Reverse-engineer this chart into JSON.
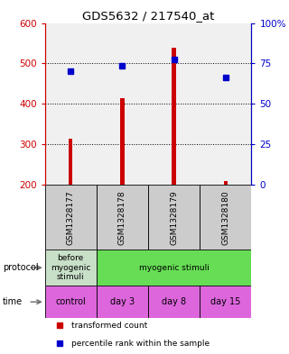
{
  "title": "GDS5632 / 217540_at",
  "samples": [
    "GSM1328177",
    "GSM1328178",
    "GSM1328179",
    "GSM1328180"
  ],
  "bar_bottoms": [
    200,
    200,
    200,
    200
  ],
  "bar_tops": [
    315,
    415,
    540,
    210
  ],
  "blue_values": [
    480,
    495,
    510,
    465
  ],
  "ylim_left": [
    200,
    600
  ],
  "ylim_right": [
    0,
    100
  ],
  "yticks_left": [
    200,
    300,
    400,
    500,
    600
  ],
  "yticks_right": [
    0,
    25,
    50,
    75,
    100
  ],
  "ytick_labels_right": [
    "0",
    "25",
    "50",
    "75",
    "100%"
  ],
  "bar_color": "#cc0000",
  "blue_color": "#0000cc",
  "protocol_labels": [
    "before\nmyogenic\nstimuli",
    "myogenic stimuli"
  ],
  "protocol_colors": [
    "#c8dfc8",
    "#66dd55"
  ],
  "time_labels": [
    "control",
    "day 3",
    "day 8",
    "day 15"
  ],
  "time_color": "#dd66dd",
  "sample_bg": "#cccccc",
  "bg_color": "#f0f0f0",
  "bar_width": 0.08,
  "legend_red": "transformed count",
  "legend_blue": "percentile rank within the sample"
}
